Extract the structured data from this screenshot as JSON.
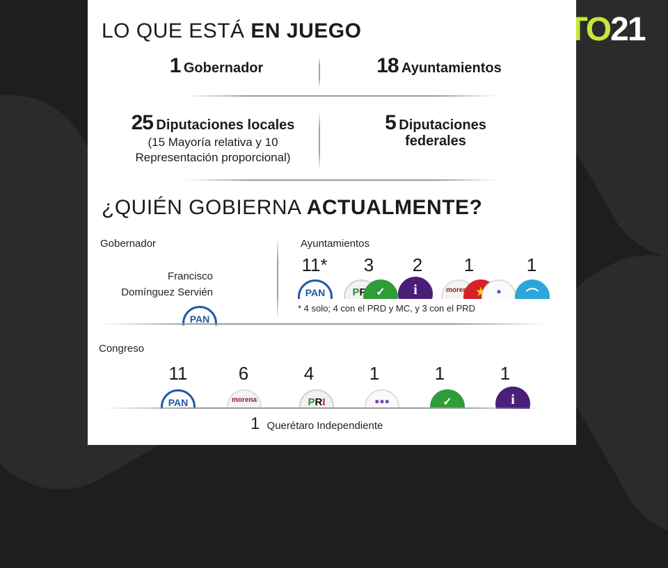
{
  "logo": {
    "part1": "VOTO",
    "part2": "21"
  },
  "section1": {
    "title_light": "LO QUE ESTÁ ",
    "title_bold": "EN JUEGO",
    "stats": [
      {
        "num": "1",
        "label": "Gobernador"
      },
      {
        "num": "18",
        "label": "Ayuntamientos"
      },
      {
        "num": "25",
        "label": "Diputaciones locales",
        "sub1": "(15 Mayoría relativa y 10",
        "sub2": "Representación proporcional)"
      },
      {
        "num": "5",
        "label": "Diputaciones",
        "label2": "federales"
      }
    ]
  },
  "section2": {
    "title_light": "¿QUIÉN GOBIERNA ",
    "title_bold": "ACTUALMENTE?",
    "gobernador": {
      "label": "Gobernador",
      "name1": "Francisco",
      "name2": "Domínguez Servién",
      "party": "PAN"
    },
    "ayuntamientos": {
      "label": "Ayuntamientos",
      "counts": [
        "11*",
        "3",
        "2",
        "1",
        "1"
      ],
      "note": "* 4 solo; 4 con el PRD y MC, y 3 con el PRD"
    },
    "congreso": {
      "label": "Congreso",
      "counts": [
        "11",
        "6",
        "4",
        "1",
        "1",
        "1"
      ],
      "independent_count": "1",
      "independent_label": "Querétaro Independiente"
    },
    "party_text": {
      "pan": "PAN",
      "morena": "morena",
      "pri_p": "P",
      "pri_r": "R",
      "pri_i": "I",
      "ind": "i"
    }
  },
  "colors": {
    "pan": "#1f5aa6",
    "pri_red": "#d8202a",
    "pri_green": "#2e8b3a",
    "independent": "#4a1f7a",
    "morena": "#8a1c1c",
    "logo_green": "#c6e83a"
  }
}
